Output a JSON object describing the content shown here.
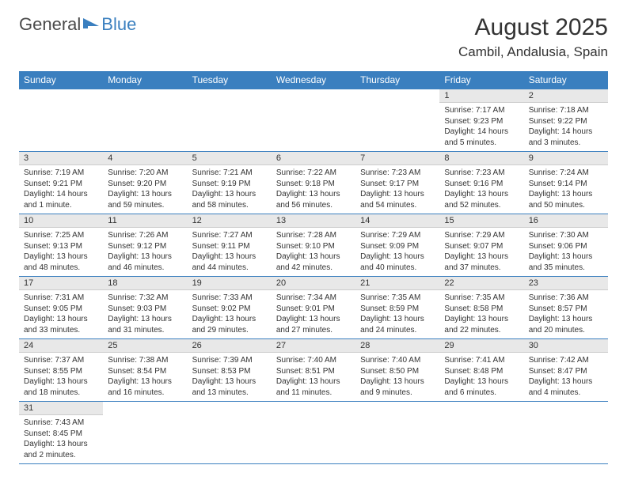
{
  "logo": {
    "text1": "General",
    "text2": "Blue"
  },
  "title": "August 2025",
  "location": "Cambil, Andalusia, Spain",
  "colors": {
    "header_bg": "#3a7fbf",
    "daynum_bg": "#e8e8e8",
    "text": "#333333",
    "border": "#3a7fbf"
  },
  "daynames": [
    "Sunday",
    "Monday",
    "Tuesday",
    "Wednesday",
    "Thursday",
    "Friday",
    "Saturday"
  ],
  "weeks": [
    [
      {
        "n": "",
        "sr": "",
        "ss": "",
        "dl": ""
      },
      {
        "n": "",
        "sr": "",
        "ss": "",
        "dl": ""
      },
      {
        "n": "",
        "sr": "",
        "ss": "",
        "dl": ""
      },
      {
        "n": "",
        "sr": "",
        "ss": "",
        "dl": ""
      },
      {
        "n": "",
        "sr": "",
        "ss": "",
        "dl": ""
      },
      {
        "n": "1",
        "sr": "Sunrise: 7:17 AM",
        "ss": "Sunset: 9:23 PM",
        "dl": "Daylight: 14 hours and 5 minutes."
      },
      {
        "n": "2",
        "sr": "Sunrise: 7:18 AM",
        "ss": "Sunset: 9:22 PM",
        "dl": "Daylight: 14 hours and 3 minutes."
      }
    ],
    [
      {
        "n": "3",
        "sr": "Sunrise: 7:19 AM",
        "ss": "Sunset: 9:21 PM",
        "dl": "Daylight: 14 hours and 1 minute."
      },
      {
        "n": "4",
        "sr": "Sunrise: 7:20 AM",
        "ss": "Sunset: 9:20 PM",
        "dl": "Daylight: 13 hours and 59 minutes."
      },
      {
        "n": "5",
        "sr": "Sunrise: 7:21 AM",
        "ss": "Sunset: 9:19 PM",
        "dl": "Daylight: 13 hours and 58 minutes."
      },
      {
        "n": "6",
        "sr": "Sunrise: 7:22 AM",
        "ss": "Sunset: 9:18 PM",
        "dl": "Daylight: 13 hours and 56 minutes."
      },
      {
        "n": "7",
        "sr": "Sunrise: 7:23 AM",
        "ss": "Sunset: 9:17 PM",
        "dl": "Daylight: 13 hours and 54 minutes."
      },
      {
        "n": "8",
        "sr": "Sunrise: 7:23 AM",
        "ss": "Sunset: 9:16 PM",
        "dl": "Daylight: 13 hours and 52 minutes."
      },
      {
        "n": "9",
        "sr": "Sunrise: 7:24 AM",
        "ss": "Sunset: 9:14 PM",
        "dl": "Daylight: 13 hours and 50 minutes."
      }
    ],
    [
      {
        "n": "10",
        "sr": "Sunrise: 7:25 AM",
        "ss": "Sunset: 9:13 PM",
        "dl": "Daylight: 13 hours and 48 minutes."
      },
      {
        "n": "11",
        "sr": "Sunrise: 7:26 AM",
        "ss": "Sunset: 9:12 PM",
        "dl": "Daylight: 13 hours and 46 minutes."
      },
      {
        "n": "12",
        "sr": "Sunrise: 7:27 AM",
        "ss": "Sunset: 9:11 PM",
        "dl": "Daylight: 13 hours and 44 minutes."
      },
      {
        "n": "13",
        "sr": "Sunrise: 7:28 AM",
        "ss": "Sunset: 9:10 PM",
        "dl": "Daylight: 13 hours and 42 minutes."
      },
      {
        "n": "14",
        "sr": "Sunrise: 7:29 AM",
        "ss": "Sunset: 9:09 PM",
        "dl": "Daylight: 13 hours and 40 minutes."
      },
      {
        "n": "15",
        "sr": "Sunrise: 7:29 AM",
        "ss": "Sunset: 9:07 PM",
        "dl": "Daylight: 13 hours and 37 minutes."
      },
      {
        "n": "16",
        "sr": "Sunrise: 7:30 AM",
        "ss": "Sunset: 9:06 PM",
        "dl": "Daylight: 13 hours and 35 minutes."
      }
    ],
    [
      {
        "n": "17",
        "sr": "Sunrise: 7:31 AM",
        "ss": "Sunset: 9:05 PM",
        "dl": "Daylight: 13 hours and 33 minutes."
      },
      {
        "n": "18",
        "sr": "Sunrise: 7:32 AM",
        "ss": "Sunset: 9:03 PM",
        "dl": "Daylight: 13 hours and 31 minutes."
      },
      {
        "n": "19",
        "sr": "Sunrise: 7:33 AM",
        "ss": "Sunset: 9:02 PM",
        "dl": "Daylight: 13 hours and 29 minutes."
      },
      {
        "n": "20",
        "sr": "Sunrise: 7:34 AM",
        "ss": "Sunset: 9:01 PM",
        "dl": "Daylight: 13 hours and 27 minutes."
      },
      {
        "n": "21",
        "sr": "Sunrise: 7:35 AM",
        "ss": "Sunset: 8:59 PM",
        "dl": "Daylight: 13 hours and 24 minutes."
      },
      {
        "n": "22",
        "sr": "Sunrise: 7:35 AM",
        "ss": "Sunset: 8:58 PM",
        "dl": "Daylight: 13 hours and 22 minutes."
      },
      {
        "n": "23",
        "sr": "Sunrise: 7:36 AM",
        "ss": "Sunset: 8:57 PM",
        "dl": "Daylight: 13 hours and 20 minutes."
      }
    ],
    [
      {
        "n": "24",
        "sr": "Sunrise: 7:37 AM",
        "ss": "Sunset: 8:55 PM",
        "dl": "Daylight: 13 hours and 18 minutes."
      },
      {
        "n": "25",
        "sr": "Sunrise: 7:38 AM",
        "ss": "Sunset: 8:54 PM",
        "dl": "Daylight: 13 hours and 16 minutes."
      },
      {
        "n": "26",
        "sr": "Sunrise: 7:39 AM",
        "ss": "Sunset: 8:53 PM",
        "dl": "Daylight: 13 hours and 13 minutes."
      },
      {
        "n": "27",
        "sr": "Sunrise: 7:40 AM",
        "ss": "Sunset: 8:51 PM",
        "dl": "Daylight: 13 hours and 11 minutes."
      },
      {
        "n": "28",
        "sr": "Sunrise: 7:40 AM",
        "ss": "Sunset: 8:50 PM",
        "dl": "Daylight: 13 hours and 9 minutes."
      },
      {
        "n": "29",
        "sr": "Sunrise: 7:41 AM",
        "ss": "Sunset: 8:48 PM",
        "dl": "Daylight: 13 hours and 6 minutes."
      },
      {
        "n": "30",
        "sr": "Sunrise: 7:42 AM",
        "ss": "Sunset: 8:47 PM",
        "dl": "Daylight: 13 hours and 4 minutes."
      }
    ],
    [
      {
        "n": "31",
        "sr": "Sunrise: 7:43 AM",
        "ss": "Sunset: 8:45 PM",
        "dl": "Daylight: 13 hours and 2 minutes."
      },
      {
        "n": "",
        "sr": "",
        "ss": "",
        "dl": ""
      },
      {
        "n": "",
        "sr": "",
        "ss": "",
        "dl": ""
      },
      {
        "n": "",
        "sr": "",
        "ss": "",
        "dl": ""
      },
      {
        "n": "",
        "sr": "",
        "ss": "",
        "dl": ""
      },
      {
        "n": "",
        "sr": "",
        "ss": "",
        "dl": ""
      },
      {
        "n": "",
        "sr": "",
        "ss": "",
        "dl": ""
      }
    ]
  ]
}
